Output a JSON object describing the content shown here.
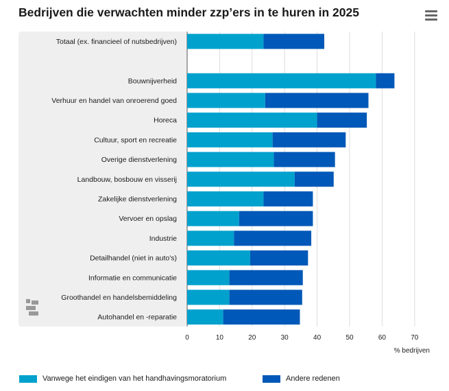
{
  "title": "Bedrijven die verwachten minder zzp’ers in te huren in 2025",
  "colors": {
    "series1": "#00a1cd",
    "series2": "#0058b8",
    "panel": "#efefef",
    "grid": "#dddddd"
  },
  "chart_data": {
    "type": "bar",
    "orientation": "horizontal",
    "stacked": true,
    "title": "Bedrijven die verwachten minder zzp’ers in te huren in 2025",
    "xlabel": "% bedrijven",
    "xlim": [
      0,
      70
    ],
    "xticks": [
      "0",
      "10",
      "20",
      "30",
      "40",
      "50",
      "60",
      "70"
    ],
    "grid": "vertical",
    "legend_position": "bottom",
    "categories": [
      "Totaal (ex. financieel of nutsbedrijven)",
      "",
      "Bouwnijverheid",
      "Verhuur en handel van onroerend goed",
      "Horeca",
      "Cultuur, sport en recreatie",
      "Overige dienstverlening",
      "Landbouw, bosbouw en visserij",
      "Zakelijke dienstverlening",
      "Vervoer en opslag",
      "Industrie",
      "Detailhandel (niet in auto's)",
      "Informatie en communicatie",
      "Groothandel en handelsbemiddeling",
      "Autohandel en -reparatie"
    ],
    "series": [
      {
        "name": "Vanwege het eindigen van het handhavingsmoratorium",
        "values": [
          23.5,
          null,
          58.1,
          24.0,
          40.0,
          26.3,
          26.7,
          33.1,
          23.5,
          16.0,
          14.4,
          19.4,
          13.0,
          13.0,
          11.1
        ]
      },
      {
        "name": "Andere redenen",
        "values": [
          18.7,
          null,
          5.7,
          31.8,
          15.3,
          22.5,
          18.8,
          12.0,
          15.2,
          22.7,
          23.8,
          17.8,
          22.6,
          22.4,
          23.6
        ]
      }
    ]
  },
  "legend": {
    "items": [
      "Vanwege het eindigen van het handhavingsmoratorium",
      "Andere redenen"
    ]
  }
}
